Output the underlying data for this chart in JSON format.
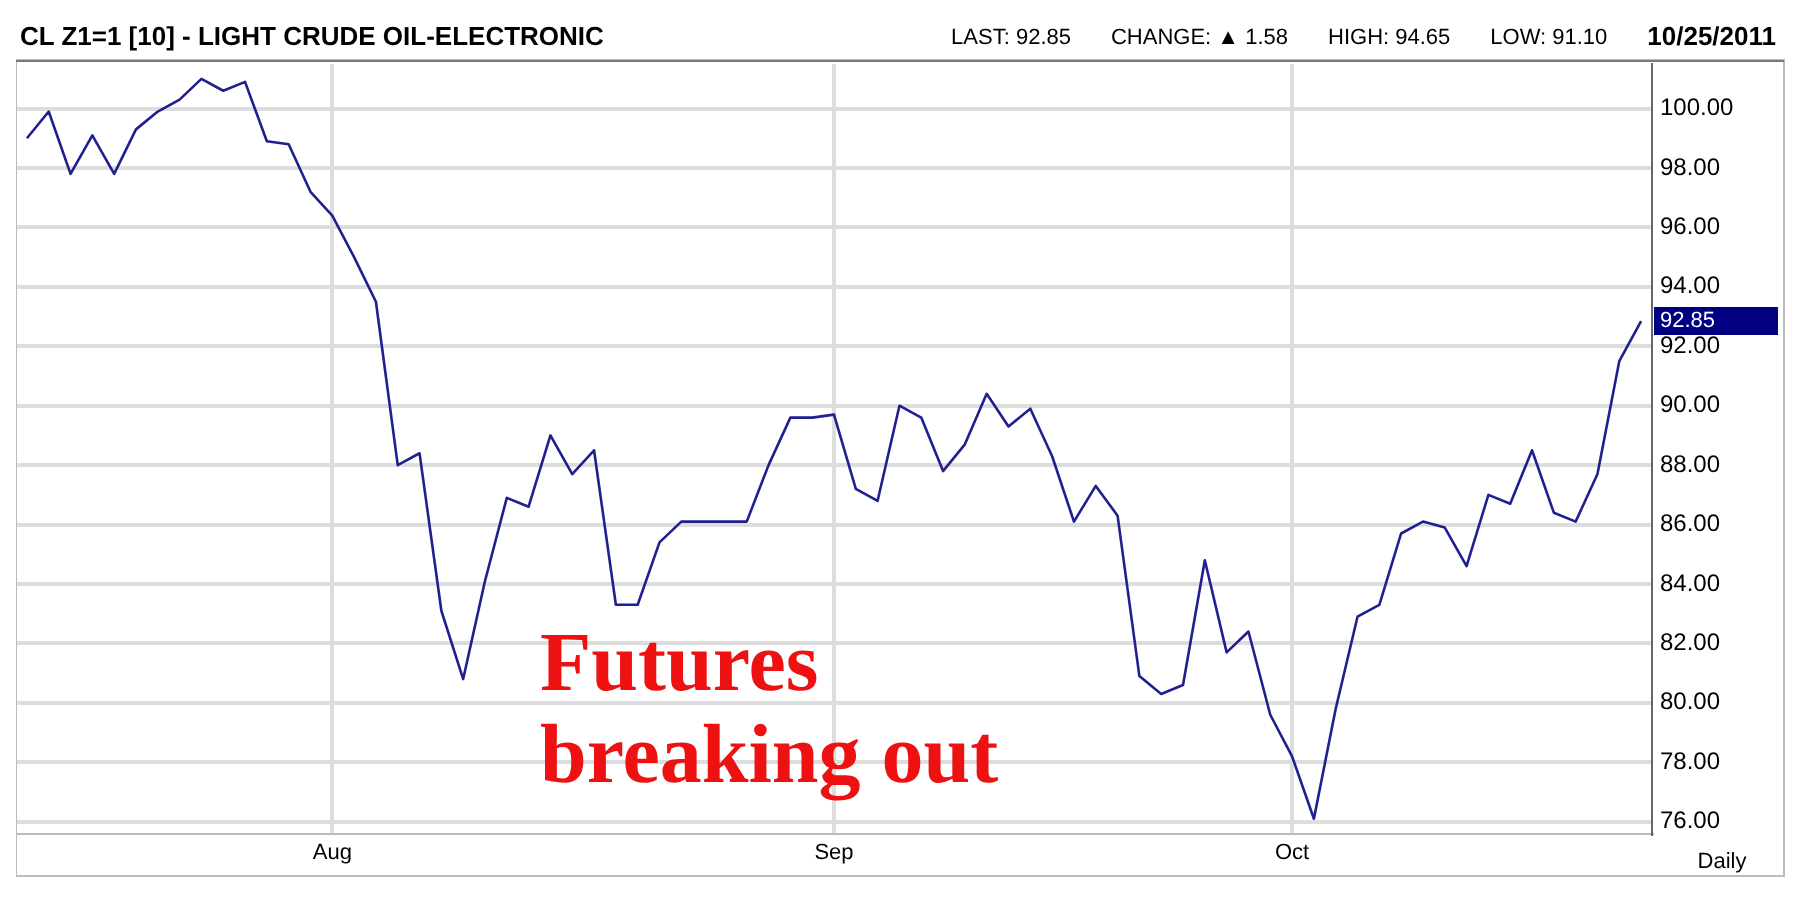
{
  "chart_data": {
    "type": "line",
    "title": "CL Z1=1 [10] - LIGHT CRUDE OIL-ELECTRONIC",
    "annotations": [
      "LAST: 92.85",
      "CHANGE: ▲ 1.58",
      "HIGH: 94.65",
      "LOW: 91.10",
      "10/25/2011",
      "Daily",
      "Futures breaking out"
    ],
    "categories": [
      null,
      null,
      null,
      null,
      null,
      null,
      null,
      null,
      null,
      null,
      null,
      null,
      null,
      null,
      "Aug",
      null,
      null,
      null,
      null,
      null,
      null,
      null,
      null,
      null,
      null,
      null,
      null,
      null,
      null,
      null,
      null,
      null,
      null,
      null,
      null,
      null,
      null,
      "Sep",
      null,
      null,
      null,
      null,
      null,
      null,
      null,
      null,
      null,
      null,
      null,
      null,
      null,
      null,
      null,
      null,
      null,
      null,
      null,
      null,
      "Oct",
      null,
      null,
      null,
      null,
      null,
      null,
      null,
      null,
      null,
      null,
      null,
      null,
      null,
      null,
      null,
      null
    ],
    "series": [
      {
        "color": "#1f1f8f",
        "values": [
          99.0,
          99.9,
          97.8,
          99.1,
          97.8,
          99.3,
          99.9,
          100.3,
          101.0,
          100.6,
          100.9,
          98.9,
          98.8,
          97.2,
          96.4,
          95.0,
          93.5,
          88.0,
          88.4,
          83.1,
          80.8,
          84.1,
          86.9,
          86.6,
          89.0,
          87.7,
          88.5,
          83.3,
          83.3,
          85.4,
          86.1,
          86.1,
          86.1,
          86.1,
          88.0,
          89.6,
          89.6,
          89.7,
          87.2,
          86.8,
          90.0,
          89.6,
          87.8,
          88.7,
          90.4,
          89.3,
          89.9,
          88.3,
          86.1,
          87.3,
          86.3,
          80.9,
          80.3,
          80.6,
          84.8,
          81.7,
          82.4,
          79.6,
          78.2,
          76.1,
          79.8,
          82.9,
          83.3,
          85.7,
          86.1,
          85.9,
          84.6,
          87.0,
          86.7,
          88.5,
          86.4,
          86.1,
          87.7,
          91.5,
          92.85
        ],
        "value_labels": [
          null,
          null,
          null,
          null,
          null,
          null,
          null,
          null,
          null,
          null,
          null,
          null,
          null,
          null,
          null,
          null,
          null,
          null,
          null,
          null,
          null,
          null,
          null,
          null,
          null,
          null,
          null,
          null,
          null,
          null,
          null,
          null,
          null,
          null,
          null,
          null,
          null,
          null,
          null,
          null,
          null,
          null,
          null,
          null,
          null,
          null,
          null,
          null,
          null,
          null,
          null,
          null,
          null,
          null,
          null,
          null,
          null,
          null,
          null,
          null,
          null,
          null,
          null,
          null,
          null,
          null,
          null,
          null,
          null,
          null,
          null,
          null,
          null,
          null,
          "92.85"
        ]
      }
    ],
    "ylim": [
      75.6,
      101.5
    ],
    "yticks": [
      {
        "value": 76,
        "label": "76.00"
      },
      {
        "value": 78,
        "label": "78.00"
      },
      {
        "value": 80,
        "label": "80.00"
      },
      {
        "value": 82,
        "label": "82.00"
      },
      {
        "value": 84,
        "label": "84.00"
      },
      {
        "value": 86,
        "label": "86.00"
      },
      {
        "value": 88,
        "label": "88.00"
      },
      {
        "value": 90,
        "label": "90.00"
      },
      {
        "value": 92,
        "label": "92.00"
      },
      {
        "value": 94,
        "label": "94.00"
      },
      {
        "value": 96,
        "label": "96.00"
      },
      {
        "value": 98,
        "label": "98.00"
      },
      {
        "value": 100,
        "label": "100.00"
      }
    ],
    "grid": true,
    "legend": false,
    "marker": "none",
    "line_style": "solid"
  }
}
